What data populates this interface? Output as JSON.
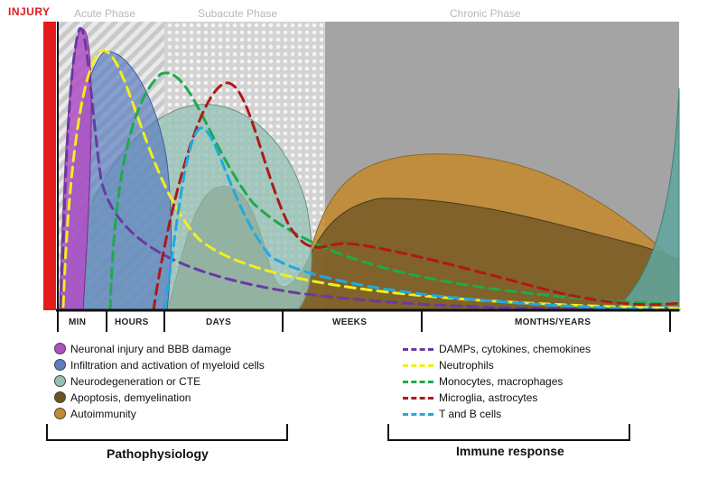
{
  "injury_label": "INJURY",
  "phases": [
    "Acute Phase",
    "Subacute Phase",
    "Chronic Phase"
  ],
  "time_axis": [
    "MIN",
    "HOURS",
    "DAYS",
    "WEEKS",
    "MONTHS/YEARS"
  ],
  "pathophysiology": {
    "title": "Pathophysiology",
    "items": [
      {
        "label": "Neuronal injury and BBB damage",
        "color": "#b04fc4"
      },
      {
        "label": "Infiltration and activation of myeloid cells",
        "color": "#5b7fc1"
      },
      {
        "label": "Neurodegeneration or CTE",
        "color": "#96c2b6"
      },
      {
        "label": "Apoptosis, demyelination",
        "color": "#6b5424"
      },
      {
        "label": "Autoimmunity",
        "color": "#c48a2c"
      }
    ]
  },
  "immune_response": {
    "title": "Immune response",
    "items": [
      {
        "label": "DAMPs, cytokines, chemokines",
        "color": "#6a3aa2"
      },
      {
        "label": "Neutrophils",
        "color": "#f2ee1a"
      },
      {
        "label": "Monocytes, macrophages",
        "color": "#1eab4a"
      },
      {
        "label": "Microglia, astrocytes",
        "color": "#b01818"
      },
      {
        "label": "T and B cells",
        "color": "#1fa9e1"
      }
    ]
  }
}
